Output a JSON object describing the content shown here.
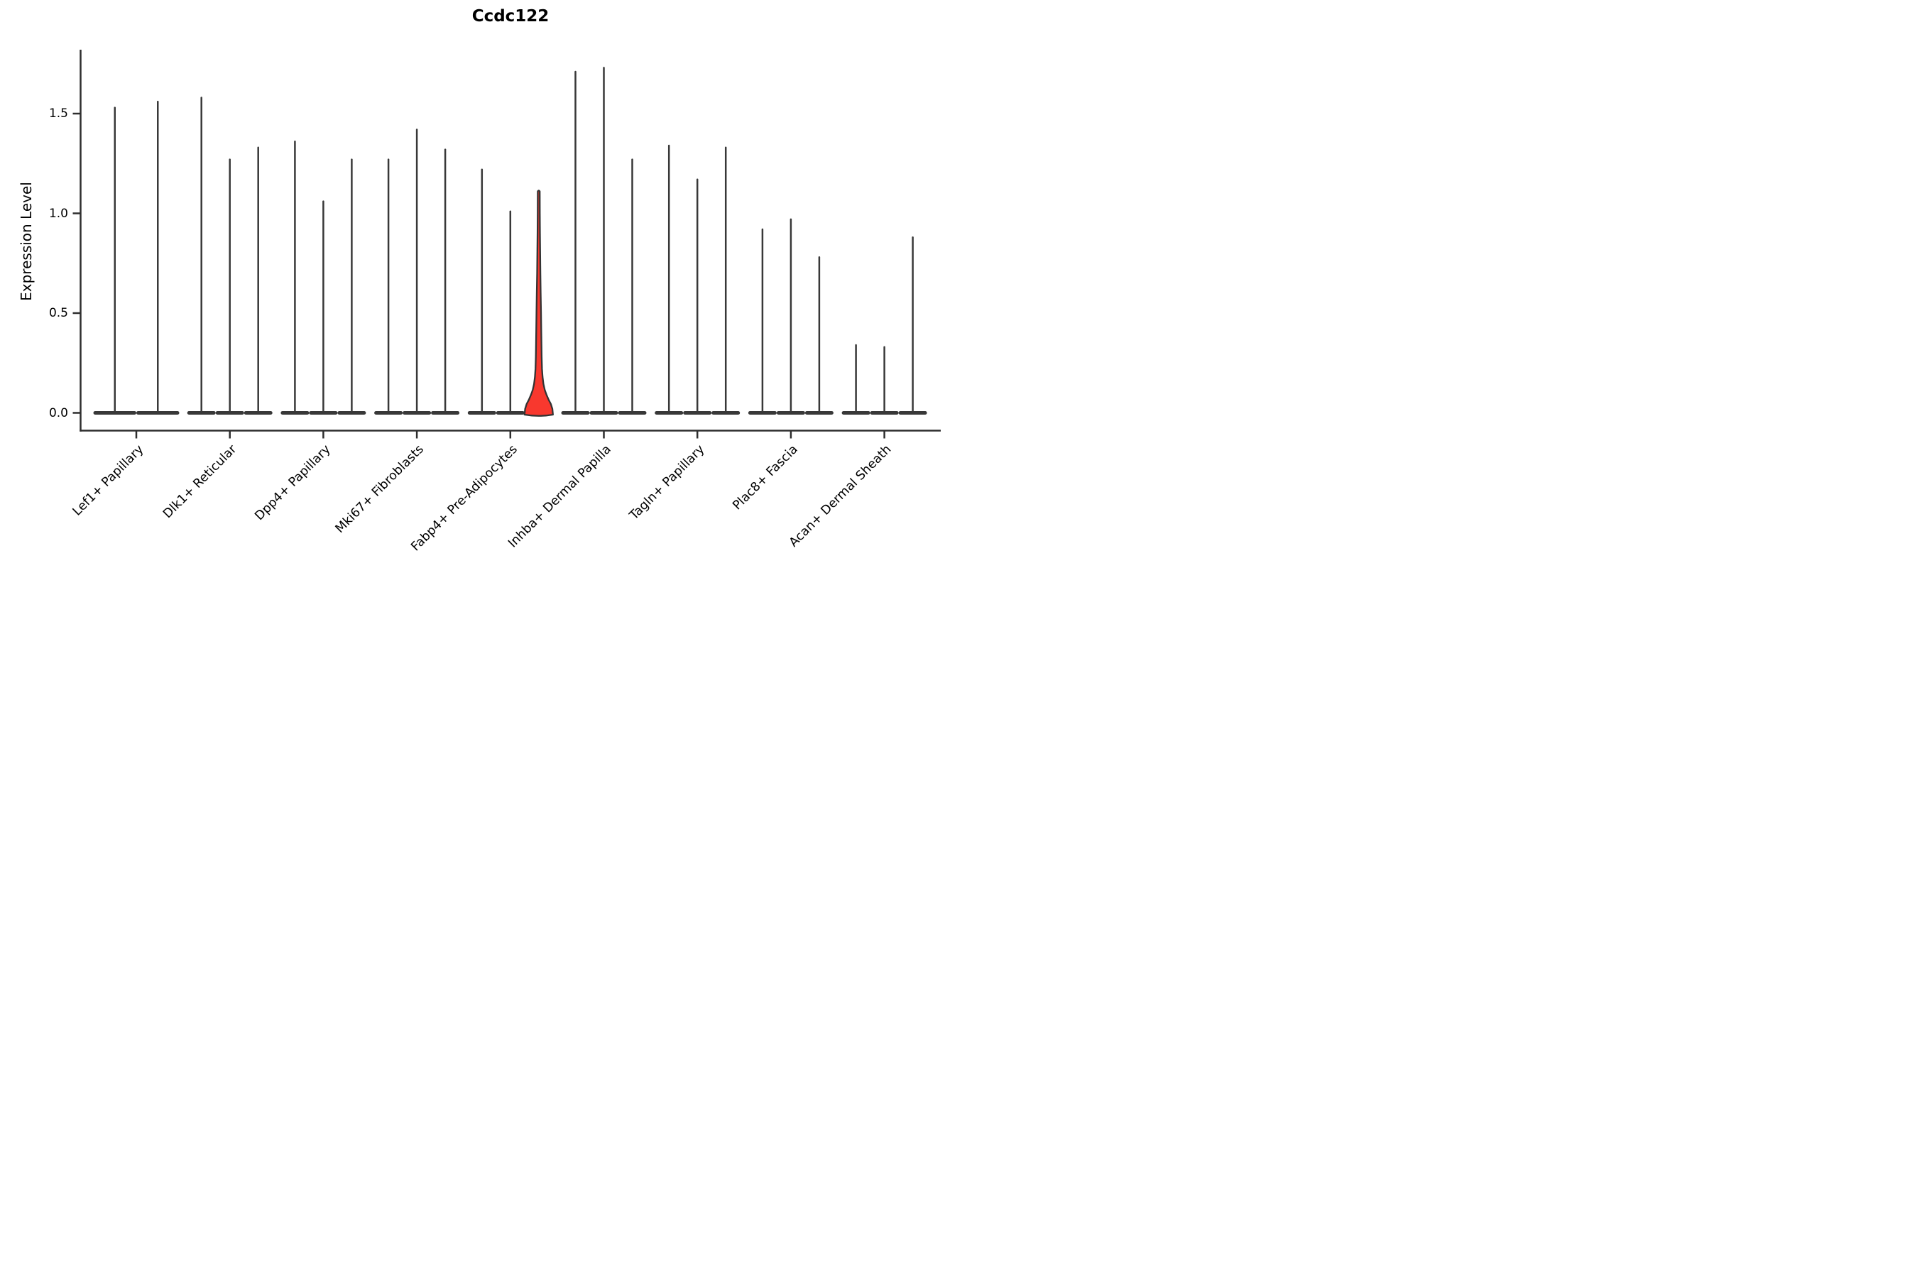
{
  "title": "Ccdc122",
  "axes": {
    "ylabel": "Expression Level",
    "ytick_labels": [
      "1.5",
      "1.0",
      "0.5",
      "0.0"
    ]
  },
  "chart_data": {
    "type": "violin",
    "title": "Ccdc122",
    "xlabel": "",
    "ylabel": "Expression Level",
    "ylim": [
      0,
      1.82
    ],
    "yticks": [
      0.0,
      0.5,
      1.0,
      1.5
    ],
    "ytick_labels": [
      "0.0",
      "0.5",
      "1.0",
      "1.5"
    ],
    "grid": false,
    "legend": "none",
    "categories": [
      "Lef1+ Papillary",
      "Dlk1+ Reticular",
      "Dpp4+ Papillary",
      "Mki67+ Fibroblasts",
      "Fabp4+ Pre-Adipocytes",
      "Inhba+ Dermal Papilla",
      "Tagln+ Papillary",
      "Plac8+ Fascia",
      "Acan+ Dermal Sheath"
    ],
    "groups": [
      {
        "category": "Lef1+ Papillary",
        "violins": [
          {
            "peak": 1.53,
            "highlighted": false
          },
          {
            "peak": 1.56,
            "highlighted": false
          }
        ]
      },
      {
        "category": "Dlk1+ Reticular",
        "violins": [
          {
            "peak": 1.58,
            "highlighted": false
          },
          {
            "peak": 1.27,
            "highlighted": false
          },
          {
            "peak": 1.33,
            "highlighted": false
          }
        ]
      },
      {
        "category": "Dpp4+ Papillary",
        "violins": [
          {
            "peak": 1.36,
            "highlighted": false
          },
          {
            "peak": 1.06,
            "highlighted": false
          },
          {
            "peak": 1.27,
            "highlighted": false
          }
        ]
      },
      {
        "category": "Mki67+ Fibroblasts",
        "violins": [
          {
            "peak": 1.27,
            "highlighted": false
          },
          {
            "peak": 1.42,
            "highlighted": false
          },
          {
            "peak": 1.32,
            "highlighted": false
          }
        ]
      },
      {
        "category": "Fabp4+ Pre-Adipocytes",
        "violins": [
          {
            "peak": 1.22,
            "highlighted": false
          },
          {
            "peak": 1.01,
            "highlighted": false
          },
          {
            "peak": 1.11,
            "highlighted": true
          }
        ]
      },
      {
        "category": "Inhba+ Dermal Papilla",
        "violins": [
          {
            "peak": 1.71,
            "highlighted": false
          },
          {
            "peak": 1.73,
            "highlighted": false
          },
          {
            "peak": 1.27,
            "highlighted": false
          }
        ]
      },
      {
        "category": "Tagln+ Papillary",
        "violins": [
          {
            "peak": 1.34,
            "highlighted": false
          },
          {
            "peak": 1.17,
            "highlighted": false
          },
          {
            "peak": 1.33,
            "highlighted": false
          }
        ]
      },
      {
        "category": "Plac8+ Fascia",
        "violins": [
          {
            "peak": 0.92,
            "highlighted": false
          },
          {
            "peak": 0.97,
            "highlighted": false
          },
          {
            "peak": 0.78,
            "highlighted": false
          }
        ]
      },
      {
        "category": "Acan+ Dermal Sheath",
        "violins": [
          {
            "peak": 0.34,
            "highlighted": false
          },
          {
            "peak": 0.33,
            "highlighted": false
          },
          {
            "peak": 0.88,
            "highlighted": false
          }
        ]
      }
    ],
    "colors": {
      "violin_ink": "#383838",
      "axis_ink": "#2e2e2e",
      "highlight_fill": "#f8382e",
      "background": "#ffffff"
    }
  }
}
